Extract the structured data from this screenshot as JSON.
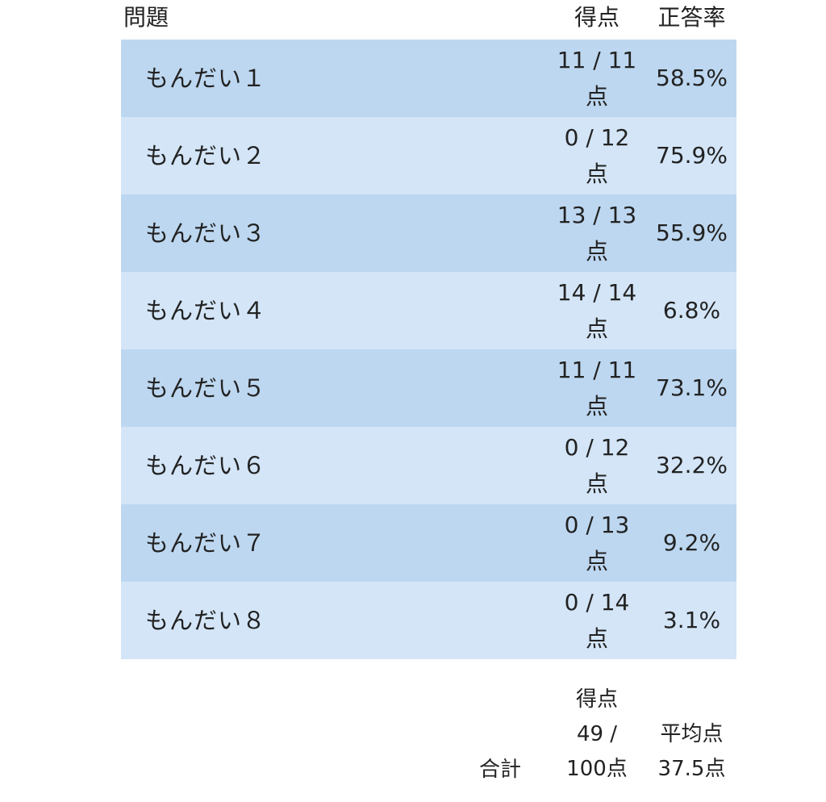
{
  "header": {
    "question": "問題",
    "score": "得点",
    "rate": "正答率"
  },
  "rows": [
    {
      "name": "もんだい１",
      "score": "11 / 11点",
      "rate": "58.5%"
    },
    {
      "name": "もんだい２",
      "score": "0 / 12 点",
      "rate": "75.9%"
    },
    {
      "name": "もんだい３",
      "score": "13 / 13点",
      "rate": "55.9%"
    },
    {
      "name": "もんだい４",
      "score": "14 / 14点",
      "rate": "6.8%"
    },
    {
      "name": "もんだい５",
      "score": "11 / 11点",
      "rate": "73.1%"
    },
    {
      "name": "もんだい６",
      "score": "0 / 12 点",
      "rate": "32.2%"
    },
    {
      "name": "もんだい７",
      "score": "0 / 13 点",
      "rate": "9.2%"
    },
    {
      "name": "もんだい８",
      "score": "0 / 14 点",
      "rate": "3.1%"
    }
  ],
  "footer": {
    "total_label": "合計",
    "score_label": "得点",
    "score_value": "49 / 100点",
    "avg_label": "平均点",
    "avg_value": "37.5点"
  }
}
